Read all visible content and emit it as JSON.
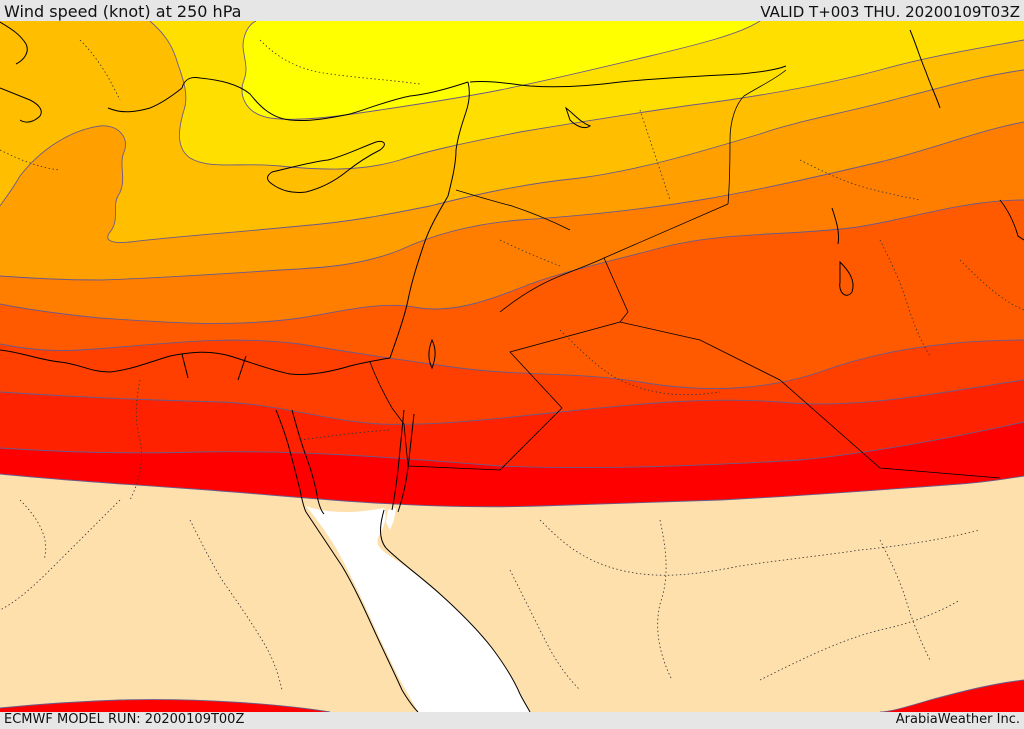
{
  "header": {
    "title": "Wind speed (knot) at 250 hPa",
    "valid": "VALID T+003 THU. 20200109T03Z"
  },
  "footer": {
    "model_run": "ECMWF MODEL RUN: 20200109T00Z",
    "credit": "ArabiaWeather Inc."
  },
  "map": {
    "variable": "wind speed",
    "units": "knot",
    "pressure_level_hpa": 250,
    "colors": {
      "band_lightest": "#ffff00",
      "band_2": "#ffdf00",
      "band_3": "#ffbe00",
      "band_4": "#ff9f00",
      "band_5": "#ff7e00",
      "band_6": "#ff5a00",
      "band_7": "#ff3f00",
      "band_8": "#ff2200",
      "band_9": "#ff0000",
      "below_threshold": "#fde0ac",
      "sea": "#ffffff",
      "coastline": "#000000",
      "contour": "#6a5a8a"
    }
  }
}
